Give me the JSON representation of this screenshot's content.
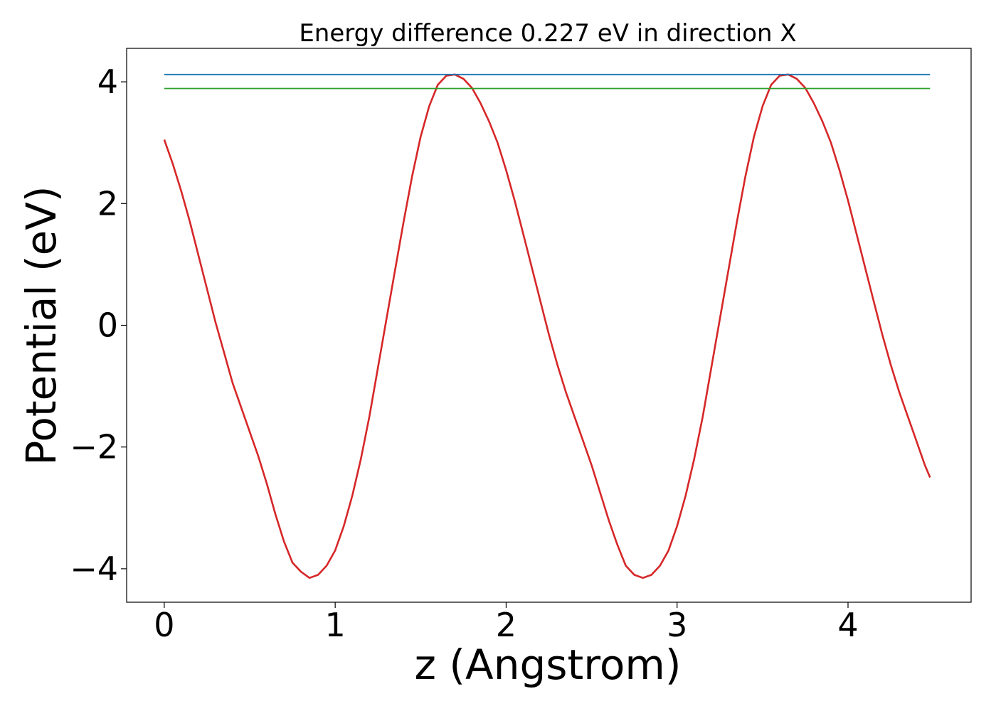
{
  "chart_data": {
    "type": "line",
    "title": "Energy difference 0.227 eV in direction X",
    "xlabel": "z (Angstrom)",
    "ylabel": "Potential (eV)",
    "xlim": [
      -0.22,
      4.72
    ],
    "ylim": [
      -4.55,
      4.55
    ],
    "xticks": [
      0,
      1,
      2,
      3,
      4
    ],
    "xtick_labels": [
      "0",
      "1",
      "2",
      "3",
      "4"
    ],
    "yticks": [
      -4,
      -2,
      0,
      2,
      4
    ],
    "ytick_labels": [
      "−4",
      "−2",
      "0",
      "2",
      "4"
    ],
    "grid": false,
    "series": [
      {
        "color": "#d62728",
        "x": [
          0,
          0.05,
          0.1,
          0.15,
          0.2,
          0.25,
          0.3,
          0.35,
          0.4,
          0.45,
          0.5,
          0.55,
          0.6,
          0.65,
          0.7,
          0.75,
          0.8,
          0.85,
          0.9,
          0.95,
          1.0,
          1.05,
          1.1,
          1.15,
          1.2,
          1.25,
          1.3,
          1.35,
          1.4,
          1.45,
          1.5,
          1.55,
          1.6,
          1.65,
          1.7,
          1.75,
          1.8,
          1.85,
          1.9,
          1.95,
          2.0,
          2.05,
          2.1,
          2.15,
          2.2,
          2.25,
          2.3,
          2.35,
          2.4,
          2.45,
          2.5,
          2.55,
          2.6,
          2.65,
          2.7,
          2.75,
          2.8,
          2.85,
          2.9,
          2.95,
          3.0,
          3.05,
          3.1,
          3.15,
          3.2,
          3.25,
          3.3,
          3.35,
          3.4,
          3.45,
          3.5,
          3.55,
          3.6,
          3.65,
          3.7,
          3.75,
          3.8,
          3.85,
          3.9,
          3.95,
          4.0,
          4.05,
          4.1,
          4.15,
          4.2,
          4.25,
          4.3,
          4.35,
          4.4,
          4.45,
          4.48
        ],
        "y": [
          3.05,
          2.65,
          2.2,
          1.7,
          1.15,
          0.6,
          0.05,
          -0.45,
          -0.95,
          -1.35,
          -1.75,
          -2.15,
          -2.6,
          -3.1,
          -3.55,
          -3.9,
          -4.05,
          -4.15,
          -4.1,
          -3.95,
          -3.7,
          -3.3,
          -2.8,
          -2.2,
          -1.5,
          -0.7,
          0.1,
          0.9,
          1.7,
          2.45,
          3.1,
          3.6,
          3.95,
          4.1,
          4.12,
          4.05,
          3.9,
          3.65,
          3.35,
          3.0,
          2.55,
          2.05,
          1.5,
          0.95,
          0.4,
          -0.15,
          -0.65,
          -1.1,
          -1.5,
          -1.9,
          -2.3,
          -2.75,
          -3.2,
          -3.6,
          -3.95,
          -4.1,
          -4.15,
          -4.1,
          -3.95,
          -3.7,
          -3.3,
          -2.8,
          -2.2,
          -1.5,
          -0.7,
          0.1,
          0.9,
          1.7,
          2.45,
          3.1,
          3.6,
          3.95,
          4.1,
          4.12,
          4.05,
          3.9,
          3.65,
          3.35,
          3.0,
          2.55,
          2.05,
          1.5,
          0.95,
          0.4,
          -0.15,
          -0.65,
          -1.1,
          -1.5,
          -1.9,
          -2.3,
          -2.5
        ]
      },
      {
        "color": "#1f77b4",
        "x": [
          0,
          4.48
        ],
        "y": [
          4.12,
          4.12
        ]
      },
      {
        "color": "#2ca02c",
        "x": [
          0,
          4.48
        ],
        "y": [
          3.89,
          3.89
        ]
      }
    ]
  }
}
